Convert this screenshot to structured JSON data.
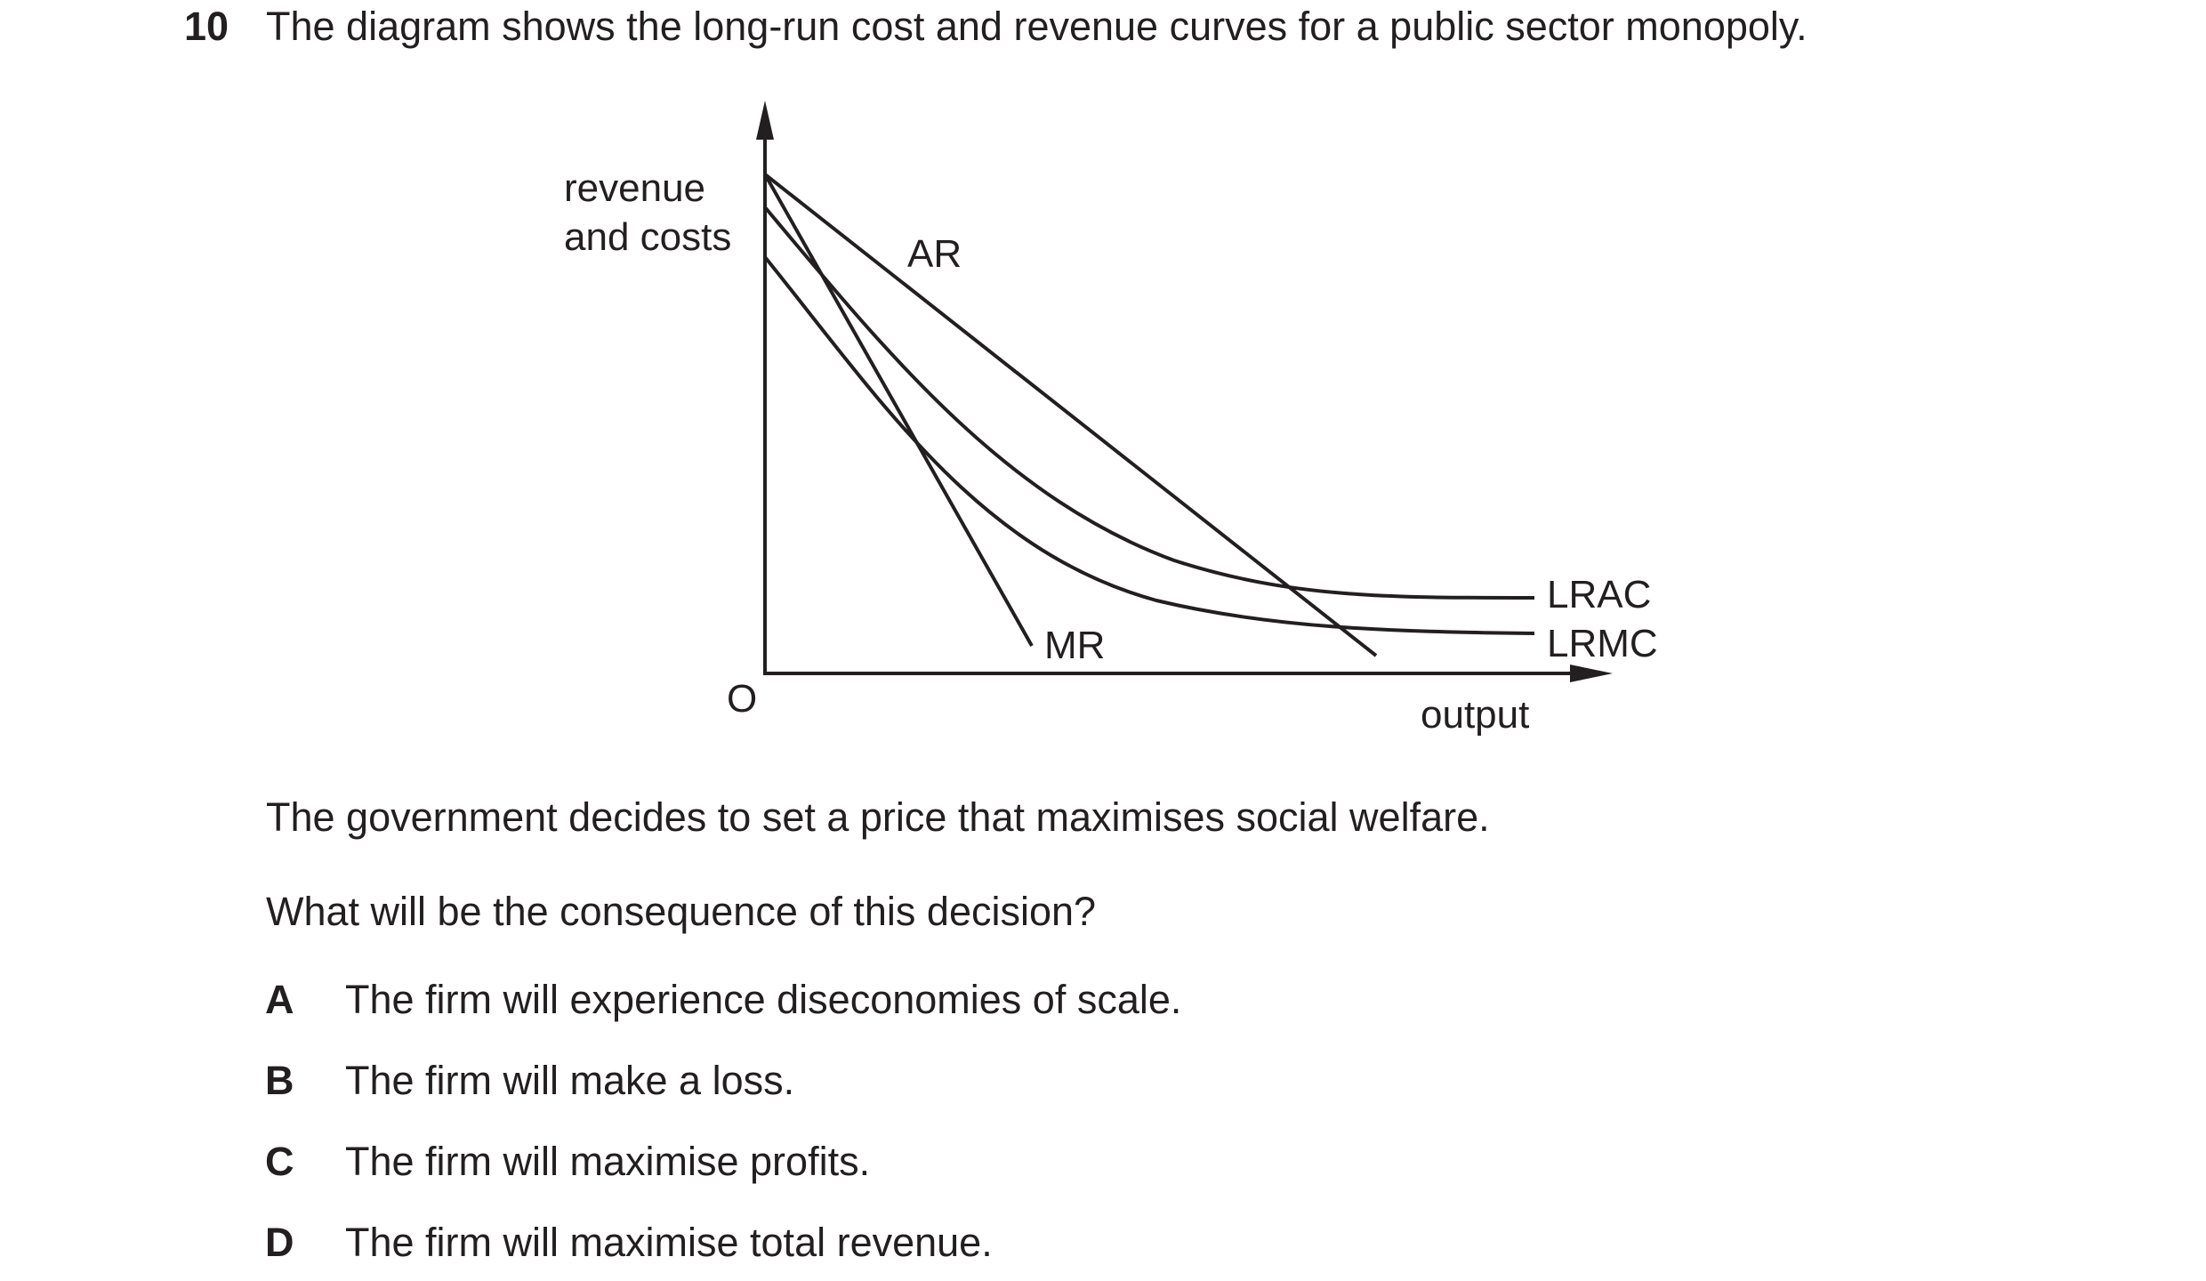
{
  "question": {
    "number": "10",
    "stem": "The diagram shows the long-run cost and revenue curves for a public sector monopoly."
  },
  "diagram": {
    "y_axis_label_line1": "revenue",
    "y_axis_label_line2": "and costs",
    "x_axis_label": "output",
    "origin_label": "O",
    "curve_labels": {
      "ar": "AR",
      "mr": "MR",
      "lrac": "LRAC",
      "lrmc": "LRMC"
    }
  },
  "body": {
    "statement": "The government decides to set a price that maximises social welfare.",
    "prompt": "What will be the consequence of this decision?"
  },
  "options": [
    {
      "letter": "A",
      "text": "The firm will experience diseconomies of scale."
    },
    {
      "letter": "B",
      "text": "The firm will make a loss."
    },
    {
      "letter": "C",
      "text": "The firm will maximise profits."
    },
    {
      "letter": "D",
      "text": "The firm will maximise total revenue."
    }
  ]
}
